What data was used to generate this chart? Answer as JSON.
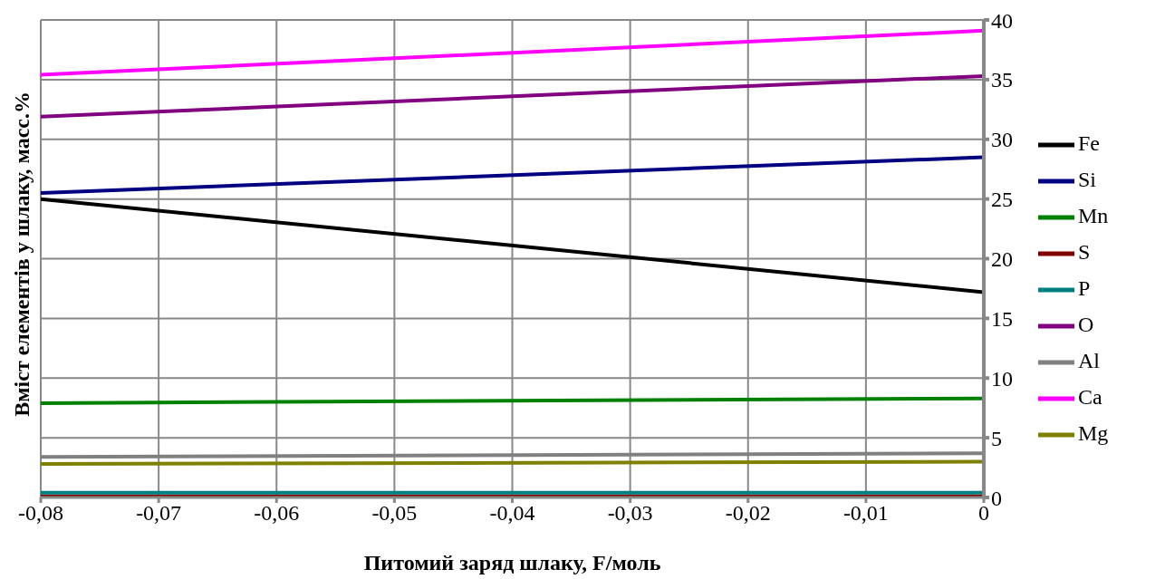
{
  "chart_data": {
    "type": "line",
    "xlabel": "Питомий заряд шлаку, F/моль",
    "ylabel": "Вміст елементів у шлаку, масс.%",
    "x": [
      -0.08,
      0
    ],
    "series": [
      {
        "name": "Fe",
        "color": "#000000",
        "values": [
          25.0,
          17.2
        ]
      },
      {
        "name": "Si",
        "color": "#000080",
        "values": [
          25.5,
          28.5
        ]
      },
      {
        "name": "Mn",
        "color": "#008000",
        "values": [
          7.9,
          8.3
        ]
      },
      {
        "name": "S",
        "color": "#800000",
        "values": [
          0.1,
          0.1
        ]
      },
      {
        "name": "P",
        "color": "#008080",
        "values": [
          0.4,
          0.4
        ]
      },
      {
        "name": "O",
        "color": "#800080",
        "values": [
          31.9,
          35.3
        ]
      },
      {
        "name": "Al",
        "color": "#808080",
        "values": [
          3.4,
          3.7
        ]
      },
      {
        "name": "Ca",
        "color": "#ff00ff",
        "values": [
          35.4,
          39.1
        ]
      },
      {
        "name": "Mg",
        "color": "#808000",
        "values": [
          2.8,
          3.0
        ]
      }
    ],
    "xlim": [
      -0.08,
      0
    ],
    "xticks": [
      {
        "value": -0.08,
        "label": "-0,08"
      },
      {
        "value": -0.07,
        "label": "-0,07"
      },
      {
        "value": -0.06,
        "label": "-0,06"
      },
      {
        "value": -0.05,
        "label": "-0,05"
      },
      {
        "value": -0.04,
        "label": "-0,04"
      },
      {
        "value": -0.03,
        "label": "-0,03"
      },
      {
        "value": -0.02,
        "label": "-0,02"
      },
      {
        "value": -0.01,
        "label": "-0,01"
      },
      {
        "value": 0,
        "label": "0"
      }
    ],
    "ylim": [
      0,
      40
    ],
    "yticks": [
      0,
      5,
      10,
      15,
      20,
      25,
      30,
      35,
      40
    ],
    "grid": true,
    "legend": "right",
    "marker": "none",
    "line_style": "solid"
  }
}
